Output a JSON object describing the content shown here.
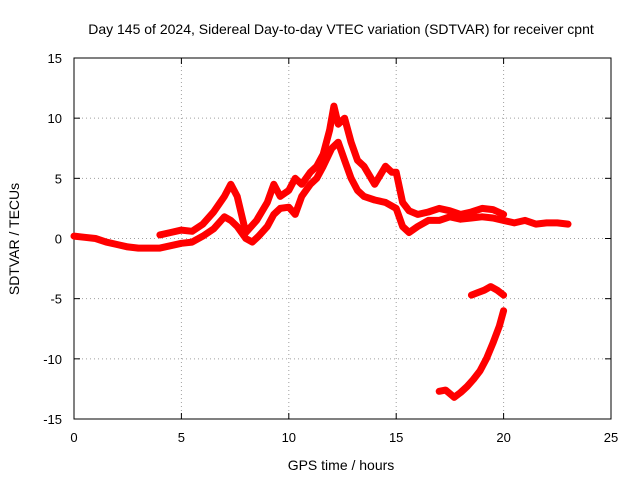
{
  "chart_data": {
    "type": "scatter",
    "title": "Day 145 of 2024, Sidereal Day-to-day VTEC variation (SDTVAR) for receiver cpnt",
    "xlabel": "GPS time / hours",
    "ylabel": "SDTVAR / TECUs",
    "xlim": [
      0,
      25
    ],
    "ylim": [
      -15,
      15
    ],
    "xticks": [
      0,
      5,
      10,
      15,
      20,
      25
    ],
    "yticks": [
      -15,
      -10,
      -5,
      0,
      5,
      10,
      15
    ],
    "grid": true,
    "marker": "+",
    "color": "#ff0000",
    "series": [
      {
        "name": "main-trace-lower",
        "points": [
          [
            0,
            0.2
          ],
          [
            0.5,
            0.1
          ],
          [
            1,
            0
          ],
          [
            1.5,
            -0.3
          ],
          [
            2,
            -0.5
          ],
          [
            2.5,
            -0.7
          ],
          [
            3,
            -0.8
          ],
          [
            3.5,
            -0.8
          ],
          [
            4,
            -0.8
          ],
          [
            4.5,
            -0.6
          ],
          [
            5,
            -0.4
          ],
          [
            5.5,
            -0.3
          ],
          [
            6,
            0.2
          ],
          [
            6.5,
            0.8
          ],
          [
            7,
            1.8
          ],
          [
            7.3,
            1.5
          ],
          [
            7.6,
            1
          ],
          [
            8,
            0
          ],
          [
            8.3,
            -0.3
          ],
          [
            8.6,
            0.2
          ],
          [
            9,
            1
          ],
          [
            9.3,
            2
          ],
          [
            9.6,
            2.5
          ],
          [
            10,
            2.6
          ],
          [
            10.3,
            2
          ],
          [
            10.6,
            3.5
          ],
          [
            11,
            4.5
          ],
          [
            11.3,
            5
          ],
          [
            11.6,
            6
          ],
          [
            12,
            7.5
          ],
          [
            12.3,
            8
          ],
          [
            12.6,
            6.5
          ],
          [
            12.9,
            5
          ],
          [
            13.2,
            4
          ],
          [
            13.5,
            3.5
          ],
          [
            14,
            3.2
          ],
          [
            14.5,
            3
          ],
          [
            15,
            2.5
          ],
          [
            15.3,
            1
          ],
          [
            15.6,
            0.5
          ],
          [
            16,
            1
          ],
          [
            16.5,
            1.5
          ],
          [
            17,
            1.5
          ],
          [
            17.5,
            1.8
          ],
          [
            18,
            1.6
          ],
          [
            18.5,
            1.7
          ],
          [
            19,
            1.8
          ],
          [
            19.5,
            1.7
          ],
          [
            20,
            1.5
          ],
          [
            20.5,
            1.3
          ],
          [
            21,
            1.5
          ],
          [
            21.5,
            1.2
          ],
          [
            22,
            1.3
          ],
          [
            22.5,
            1.3
          ],
          [
            23,
            1.2
          ]
        ]
      },
      {
        "name": "main-trace-upper",
        "points": [
          [
            4,
            0.3
          ],
          [
            4.5,
            0.5
          ],
          [
            5,
            0.7
          ],
          [
            5.5,
            0.6
          ],
          [
            6,
            1.2
          ],
          [
            6.5,
            2.2
          ],
          [
            7,
            3.5
          ],
          [
            7.3,
            4.5
          ],
          [
            7.6,
            3.5
          ],
          [
            8,
            0.5
          ],
          [
            8.5,
            1.5
          ],
          [
            9,
            3
          ],
          [
            9.3,
            4.5
          ],
          [
            9.6,
            3.5
          ],
          [
            10,
            4
          ],
          [
            10.3,
            5
          ],
          [
            10.6,
            4.5
          ],
          [
            11,
            5.5
          ],
          [
            11.3,
            6
          ],
          [
            11.6,
            7
          ],
          [
            11.9,
            9
          ],
          [
            12.1,
            11
          ],
          [
            12.3,
            9.5
          ],
          [
            12.6,
            10
          ],
          [
            12.9,
            8
          ],
          [
            13.2,
            6.5
          ],
          [
            13.5,
            6
          ],
          [
            14,
            4.5
          ],
          [
            14.5,
            6
          ],
          [
            14.8,
            5.5
          ],
          [
            15,
            5.5
          ],
          [
            15.3,
            3
          ],
          [
            15.6,
            2.3
          ],
          [
            16,
            2
          ],
          [
            16.5,
            2.2
          ],
          [
            17,
            2.5
          ],
          [
            17.5,
            2.3
          ],
          [
            18,
            2
          ],
          [
            18.5,
            2.2
          ],
          [
            19,
            2.5
          ],
          [
            19.5,
            2.4
          ],
          [
            20,
            2
          ]
        ]
      },
      {
        "name": "negative-arc",
        "points": [
          [
            17,
            -12.7
          ],
          [
            17.3,
            -12.6
          ],
          [
            17.7,
            -13.2
          ],
          [
            18,
            -12.8
          ],
          [
            18.3,
            -12.3
          ],
          [
            18.6,
            -11.7
          ],
          [
            18.9,
            -11
          ],
          [
            19.2,
            -10
          ],
          [
            19.5,
            -8.7
          ],
          [
            19.8,
            -7.3
          ],
          [
            20,
            -6
          ]
        ]
      },
      {
        "name": "negative-hook",
        "points": [
          [
            18.5,
            -4.7
          ],
          [
            18.8,
            -4.5
          ],
          [
            19.1,
            -4.3
          ],
          [
            19.4,
            -4
          ],
          [
            19.7,
            -4.3
          ],
          [
            20,
            -4.7
          ]
        ]
      }
    ]
  }
}
